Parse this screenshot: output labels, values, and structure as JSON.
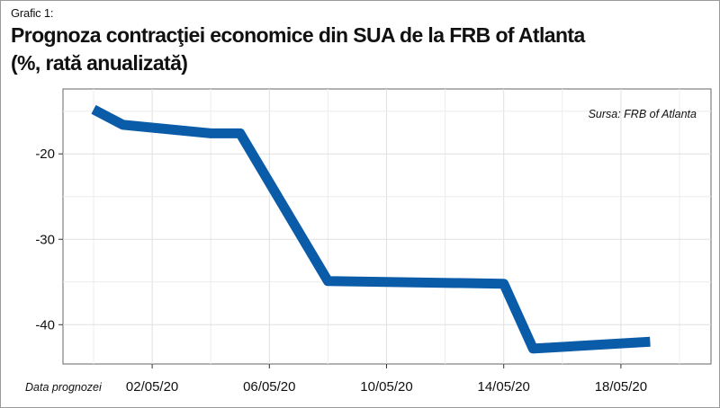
{
  "header": {
    "kicker": "Grafic 1:",
    "title_line1": "Prognoza contracţiei economice din SUA de la FRB of Atlanta",
    "title_line2": "(%, rată anualizată)"
  },
  "chart_data": {
    "type": "line",
    "title": "Prognoza contracţiei economice din SUA de la FRB of Atlanta",
    "subtitle": "(%, rată anualizată)",
    "xlabel": "Data prognozei",
    "ylabel": "",
    "source": "Sursa: FRB of Atlanta",
    "x_tick_labels": [
      "02/05/20",
      "06/05/20",
      "10/05/20",
      "14/05/20",
      "18/05/20"
    ],
    "y_ticks": [
      -20,
      -30,
      -40
    ],
    "xlim": [
      "2020-04-30",
      "2020-05-20"
    ],
    "ylim": [
      -44.6,
      -12.4
    ],
    "grid": true,
    "legend": "none",
    "line_color": "#0b5ca8",
    "series": [
      {
        "points": [
          {
            "x": "2020-04-30",
            "y": -14.8
          },
          {
            "x": "2020-05-01",
            "y": -16.6
          },
          {
            "x": "2020-05-04",
            "y": -17.6
          },
          {
            "x": "2020-05-05",
            "y": -17.6
          },
          {
            "x": "2020-05-08",
            "y": -34.9
          },
          {
            "x": "2020-05-14",
            "y": -35.2
          },
          {
            "x": "2020-05-15",
            "y": -42.8
          },
          {
            "x": "2020-05-19",
            "y": -42.0
          }
        ]
      }
    ]
  }
}
